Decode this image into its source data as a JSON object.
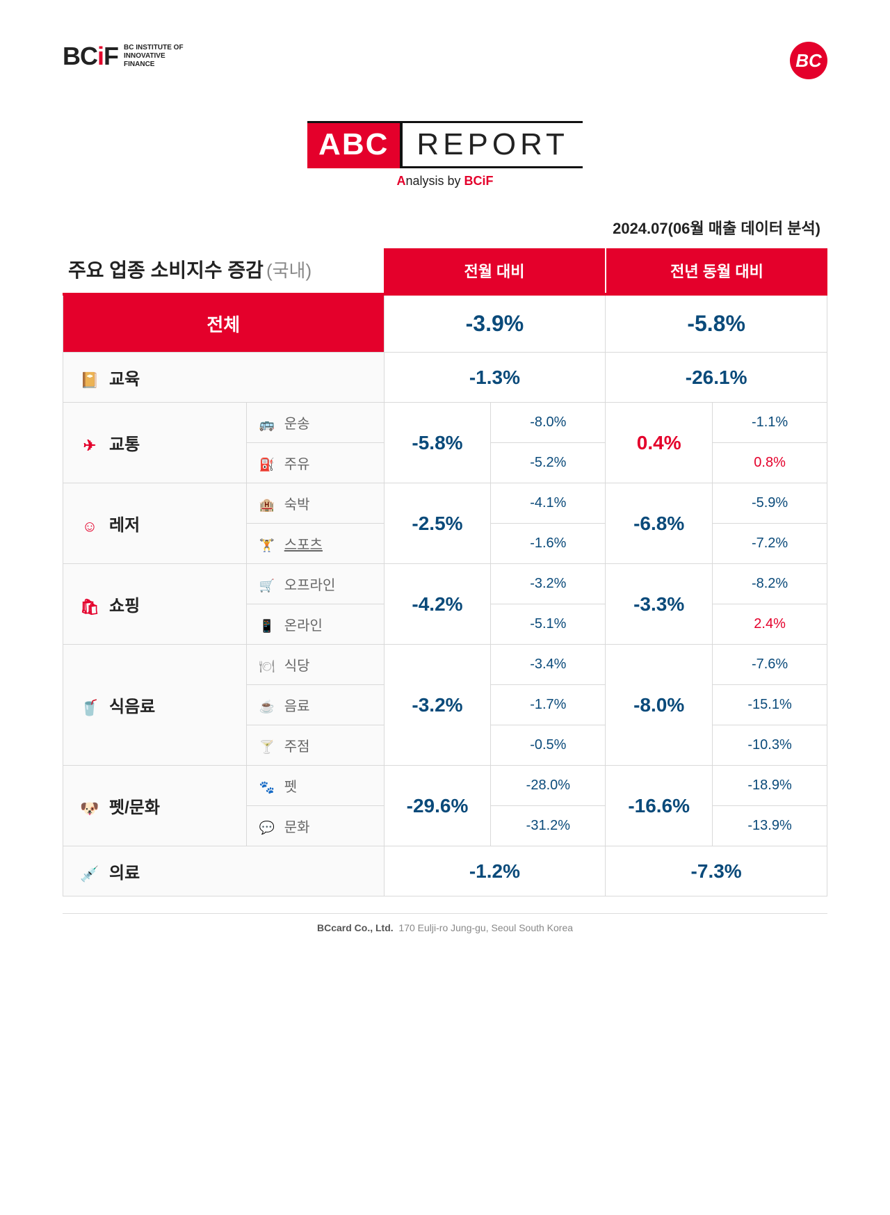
{
  "header": {
    "logo_text_1": "BC",
    "logo_text_2": "i",
    "logo_text_3": "F",
    "logo_sub_1": "BC INSTITUTE OF",
    "logo_sub_2": "INNOVATIVE",
    "logo_sub_3": "FINANCE",
    "logo_right": "BC"
  },
  "title": {
    "abc": "ABC",
    "report": "REPORT",
    "sub_a": "A",
    "sub_mid": "nalysis by ",
    "sub_bcif": "BCiF"
  },
  "date_line": "2024.07(06월 매출 데이터 분석)",
  "table": {
    "heading_main": "주요 업종 소비지수 증감",
    "heading_sub": "(국내)",
    "col_mom": "전월 대비",
    "col_yoy": "전년 동월 대비"
  },
  "colors": {
    "accent": "#e4002b",
    "neg": "#0a4a7a",
    "pos": "#e4002b",
    "bg_light": "#fafafa",
    "border": "#d9d9d9"
  },
  "total": {
    "label": "전체",
    "mom": "-3.9%",
    "yoy": "-5.8%"
  },
  "rows": [
    {
      "icon": "📔",
      "label": "교육",
      "mom": "-1.3%",
      "mom_cls": "neg",
      "yoy": "-26.1%",
      "yoy_cls": "neg",
      "subs": []
    },
    {
      "icon": "✈",
      "label": "교통",
      "mom": "-5.8%",
      "mom_cls": "neg",
      "yoy": "0.4%",
      "yoy_cls": "pos",
      "subs": [
        {
          "icon": "🚌",
          "label": "운송",
          "mom": "-8.0%",
          "mom_cls": "neg",
          "yoy": "-1.1%",
          "yoy_cls": "neg"
        },
        {
          "icon": "⛽",
          "label": "주유",
          "mom": "-5.2%",
          "mom_cls": "neg",
          "yoy": "0.8%",
          "yoy_cls": "pos"
        }
      ]
    },
    {
      "icon": "☺",
      "label": "레저",
      "mom": "-2.5%",
      "mom_cls": "neg",
      "yoy": "-6.8%",
      "yoy_cls": "neg",
      "subs": [
        {
          "icon": "🏨",
          "label": "숙박",
          "mom": "-4.1%",
          "mom_cls": "neg",
          "yoy": "-5.9%",
          "yoy_cls": "neg"
        },
        {
          "icon": "🏋",
          "label": "스포츠",
          "underline": true,
          "mom": "-1.6%",
          "mom_cls": "neg",
          "yoy": "-7.2%",
          "yoy_cls": "neg"
        }
      ]
    },
    {
      "icon": "🛍",
      "label": "쇼핑",
      "mom": "-4.2%",
      "mom_cls": "neg",
      "yoy": "-3.3%",
      "yoy_cls": "neg",
      "subs": [
        {
          "icon": "🛒",
          "label": "오프라인",
          "mom": "-3.2%",
          "mom_cls": "neg",
          "yoy": "-8.2%",
          "yoy_cls": "neg"
        },
        {
          "icon": "📱",
          "label": "온라인",
          "mom": "-5.1%",
          "mom_cls": "neg",
          "yoy": "2.4%",
          "yoy_cls": "pos"
        }
      ]
    },
    {
      "icon": "🥤",
      "label": "식음료",
      "mom": "-3.2%",
      "mom_cls": "neg",
      "yoy": "-8.0%",
      "yoy_cls": "neg",
      "subs": [
        {
          "icon": "🍽",
          "label": "식당",
          "mom": "-3.4%",
          "mom_cls": "neg",
          "yoy": "-7.6%",
          "yoy_cls": "neg"
        },
        {
          "icon": "☕",
          "label": "음료",
          "mom": "-1.7%",
          "mom_cls": "neg",
          "yoy": "-15.1%",
          "yoy_cls": "neg"
        },
        {
          "icon": "🍸",
          "label": "주점",
          "mom": "-0.5%",
          "mom_cls": "neg",
          "yoy": "-10.3%",
          "yoy_cls": "neg"
        }
      ]
    },
    {
      "icon": "🐶",
      "label": "펫/문화",
      "mom": "-29.6%",
      "mom_cls": "neg",
      "yoy": "-16.6%",
      "yoy_cls": "neg",
      "subs": [
        {
          "icon": "🐾",
          "label": "펫",
          "mom": "-28.0%",
          "mom_cls": "neg",
          "yoy": "-18.9%",
          "yoy_cls": "neg"
        },
        {
          "icon": "💬",
          "label": "문화",
          "mom": "-31.2%",
          "mom_cls": "neg",
          "yoy": "-13.9%",
          "yoy_cls": "neg"
        }
      ]
    },
    {
      "icon": "💉",
      "label": "의료",
      "mom": "-1.2%",
      "mom_cls": "neg",
      "yoy": "-7.3%",
      "yoy_cls": "neg",
      "subs": []
    }
  ],
  "footer": {
    "company": "BCcard Co., Ltd.",
    "address": "170 Eulji-ro Jung-gu, Seoul South Korea"
  }
}
